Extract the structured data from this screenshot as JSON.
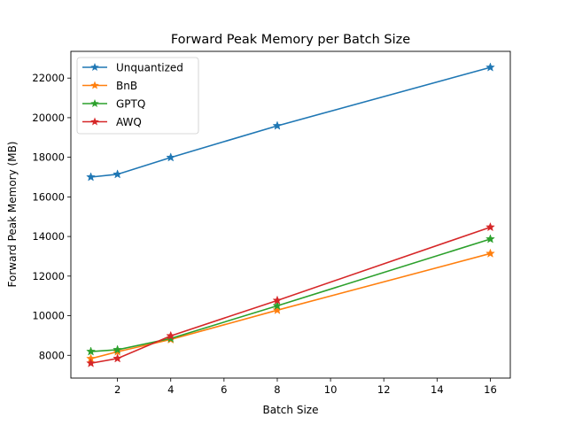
{
  "chart_data": {
    "type": "line",
    "title": "Forward Peak Memory per Batch Size",
    "xlabel": "Batch Size",
    "ylabel": "Forward Peak Memory (MB)",
    "xlim": [
      0.25,
      16.75
    ],
    "ylim": [
      6850,
      23350
    ],
    "xticks": [
      2,
      4,
      6,
      8,
      10,
      12,
      14,
      16
    ],
    "yticks": [
      8000,
      10000,
      12000,
      14000,
      16000,
      18000,
      20000,
      22000
    ],
    "grid": false,
    "legend_position": "top-left",
    "marker": "star",
    "x": [
      1,
      2,
      4,
      8,
      16
    ],
    "series": [
      {
        "name": "Unquantized",
        "color": "#1f77b4",
        "values": [
          17000,
          17140,
          17990,
          19590,
          22540
        ]
      },
      {
        "name": "BnB",
        "color": "#ff7f0e",
        "values": [
          7830,
          8180,
          8800,
          10280,
          13140
        ]
      },
      {
        "name": "GPTQ",
        "color": "#2ca02c",
        "values": [
          8190,
          8280,
          8850,
          10500,
          13870
        ]
      },
      {
        "name": "AWQ",
        "color": "#d62728",
        "values": [
          7600,
          7840,
          8980,
          10770,
          14470
        ]
      }
    ]
  }
}
